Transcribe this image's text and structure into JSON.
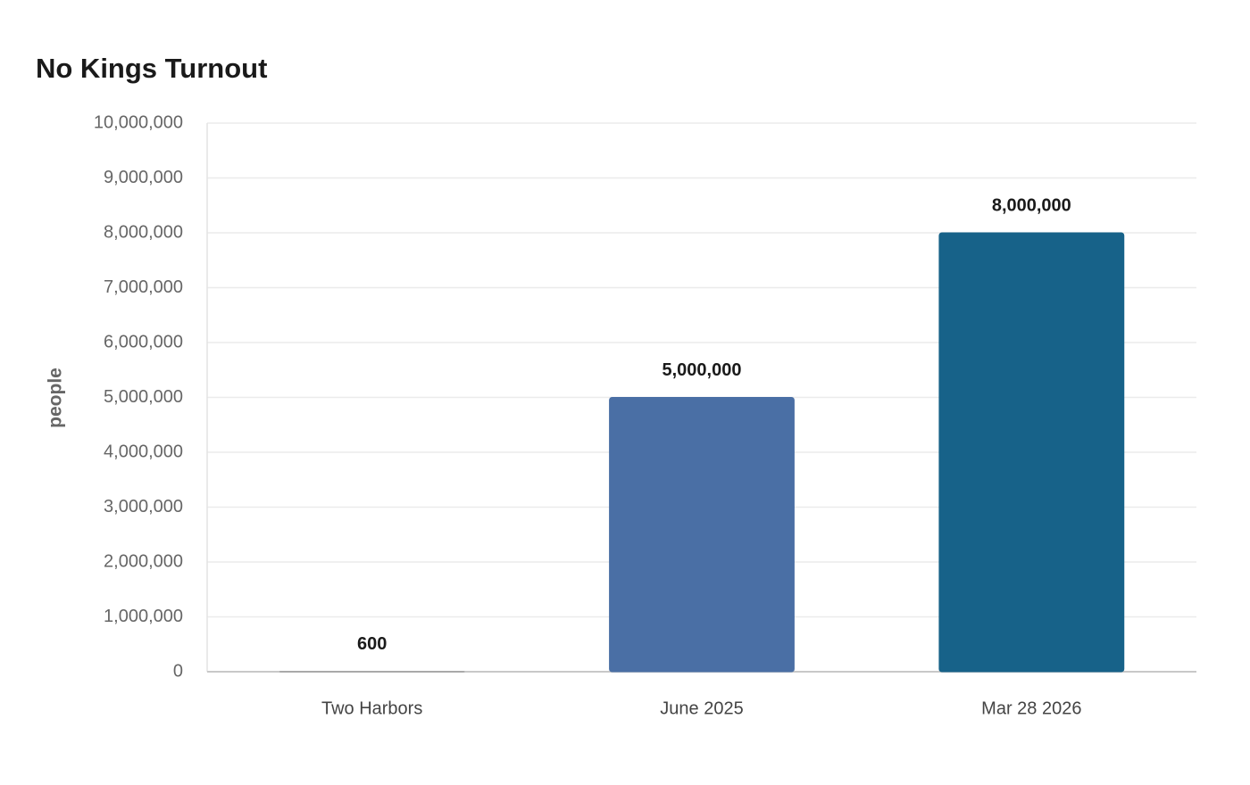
{
  "chart_data": {
    "type": "bar",
    "title": "No Kings Turnout",
    "y_label": "people",
    "categories": [
      "Two Harbors",
      "June 2025",
      "Mar 28 2026"
    ],
    "values": [
      600,
      5000000,
      8000000
    ],
    "value_labels": [
      "600",
      "5,000,000",
      "8,000,000"
    ],
    "colors": [
      "#8a8a8a",
      "#4a6fa5",
      "#176289"
    ],
    "ylim": [
      0,
      10000000
    ],
    "yticks": [
      0,
      {
        "value": 1000000,
        "label": "1,000,000"
      },
      {
        "value": 2000000,
        "label": "2,000,000"
      },
      {
        "value": 3000000,
        "label": "3,000,000"
      },
      {
        "value": 4000000,
        "label": "4,000,000"
      },
      {
        "value": 5000000,
        "label": "5,000,000"
      },
      {
        "value": 6000000,
        "label": "6,000,000"
      },
      {
        "value": 7000000,
        "label": "7,000,000"
      },
      {
        "value": 8000000,
        "label": "8,000,000"
      },
      {
        "value": 9000000,
        "label": "9,000,000"
      },
      {
        "value": 10000000,
        "label": "10,000,000"
      }
    ],
    "grid": true
  }
}
